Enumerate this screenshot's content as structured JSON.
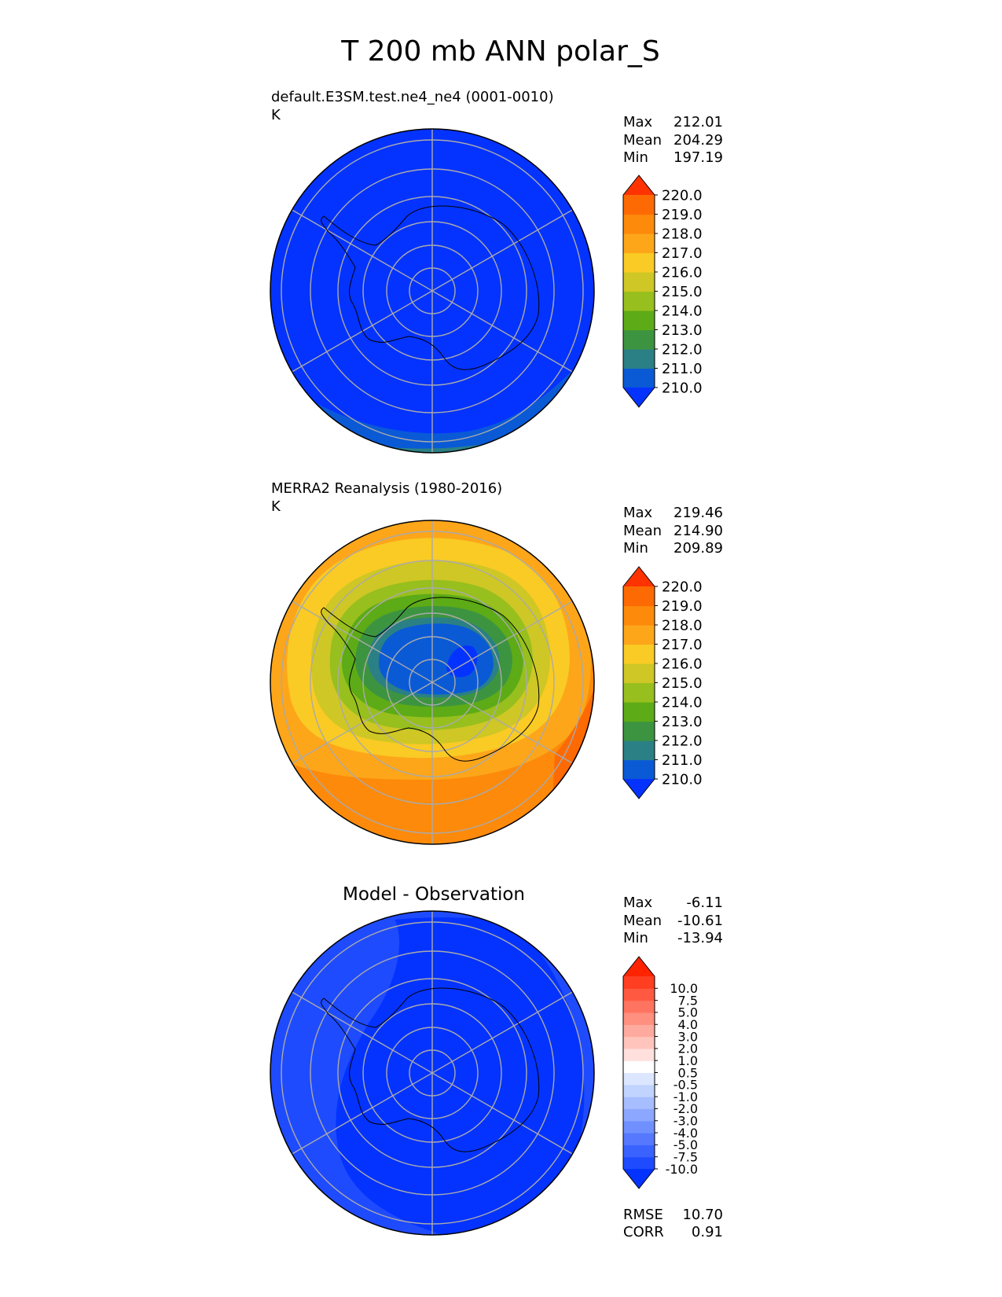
{
  "figure_title": "T 200 mb ANN polar_S",
  "colors": {
    "abs_levels": [
      "#0433ff",
      "#0a5ad6",
      "#2a8085",
      "#3d9440",
      "#5dab16",
      "#97bf1e",
      "#cec725",
      "#f9cb24",
      "#fda61a",
      "#fd8a0b",
      "#fd6a03",
      "#ff3300"
    ],
    "diff_levels": [
      "#0433ff",
      "#1f4bff",
      "#3a62ff",
      "#5578ff",
      "#7090ff",
      "#8ba7ff",
      "#a6bdff",
      "#c1d3ff",
      "#dce6ff",
      "#ffffff",
      "#ffe0dc",
      "#ffc5bd",
      "#ffaa9e",
      "#ff8f7f",
      "#ff7460",
      "#ff5941",
      "#ff3e22",
      "#ff2300"
    ],
    "coastline": "#000000",
    "gridline": "#aaaaaa"
  },
  "chart_data": [
    {
      "type": "heatmap",
      "projection": "south-polar-stereographic",
      "title_left": "default.E3SM.test.ne4_ne4 (0001-0010)",
      "units": "K",
      "stats": [
        {
          "label": "Max",
          "value": "212.01"
        },
        {
          "label": "Mean",
          "value": "204.29"
        },
        {
          "label": "Min",
          "value": "197.19"
        }
      ],
      "colorbar": {
        "levels": [
          210.0,
          211.0,
          212.0,
          213.0,
          214.0,
          215.0,
          216.0,
          217.0,
          218.0,
          219.0,
          220.0
        ],
        "tick_labels": [
          "210.0",
          "211.0",
          "212.0",
          "213.0",
          "214.0",
          "215.0",
          "216.0",
          "217.0",
          "218.0",
          "219.0",
          "220.0"
        ],
        "extend": "both"
      }
    },
    {
      "type": "heatmap",
      "projection": "south-polar-stereographic",
      "title_left": "MERRA2 Reanalysis (1980-2016)",
      "units": "K",
      "stats": [
        {
          "label": "Max",
          "value": "219.46"
        },
        {
          "label": "Mean",
          "value": "214.90"
        },
        {
          "label": "Min",
          "value": "209.89"
        }
      ],
      "colorbar": {
        "levels": [
          210.0,
          211.0,
          212.0,
          213.0,
          214.0,
          215.0,
          216.0,
          217.0,
          218.0,
          219.0,
          220.0
        ],
        "tick_labels": [
          "210.0",
          "211.0",
          "212.0",
          "213.0",
          "214.0",
          "215.0",
          "216.0",
          "217.0",
          "218.0",
          "219.0",
          "220.0"
        ],
        "extend": "both"
      }
    },
    {
      "type": "heatmap",
      "projection": "south-polar-stereographic",
      "title_center": "Model - Observation",
      "stats": [
        {
          "label": "Max",
          "value": "-6.11"
        },
        {
          "label": "Mean",
          "value": "-10.61"
        },
        {
          "label": "Min",
          "value": "-13.94"
        }
      ],
      "colorbar": {
        "levels": [
          -10.0,
          -7.5,
          -5.0,
          -4.0,
          -3.0,
          -2.0,
          -1.0,
          -0.5,
          0.5,
          1.0,
          2.0,
          3.0,
          4.0,
          5.0,
          7.5,
          10.0
        ],
        "tick_labels": [
          "-10.0",
          "-7.5",
          "-5.0",
          "-4.0",
          "-3.0",
          "-2.0",
          "-1.0",
          "-0.5",
          "0.5",
          "1.0",
          "2.0",
          "3.0",
          "4.0",
          "5.0",
          "7.5",
          "10.0"
        ],
        "extend": "both"
      },
      "metrics": [
        {
          "label": "RMSE",
          "value": "10.70"
        },
        {
          "label": "CORR",
          "value": "0.91"
        }
      ]
    }
  ]
}
